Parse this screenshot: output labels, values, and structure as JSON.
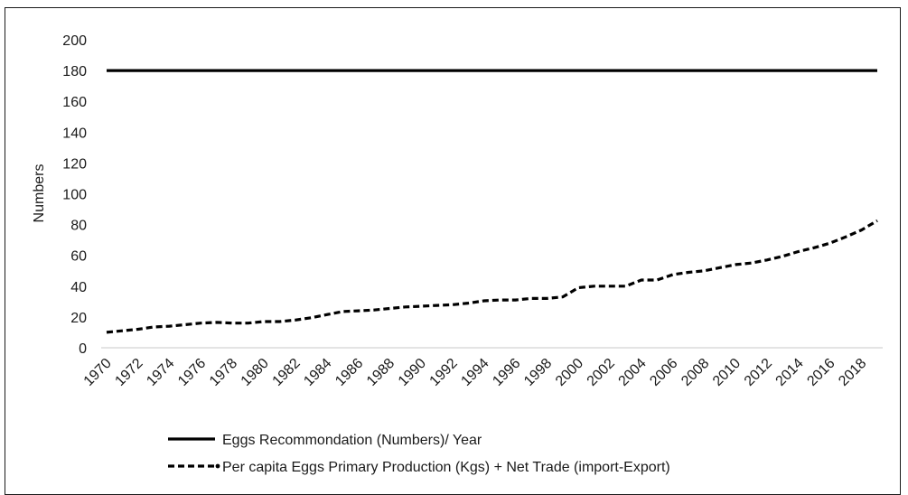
{
  "chart_data": {
    "type": "line",
    "title": "",
    "xlabel": "",
    "ylabel": "Numbers",
    "ylim": [
      0,
      200
    ],
    "yticks": [
      0,
      20,
      40,
      60,
      80,
      100,
      120,
      140,
      160,
      180,
      200
    ],
    "xticks": [
      1970,
      1972,
      1974,
      1976,
      1978,
      1980,
      1982,
      1984,
      1986,
      1988,
      1990,
      1992,
      1994,
      1996,
      1998,
      2000,
      2002,
      2004,
      2006,
      2008,
      2010,
      2012,
      2014,
      2016,
      2018
    ],
    "grid": false,
    "legend_position": "bottom",
    "x": [
      1970,
      1971,
      1972,
      1973,
      1974,
      1975,
      1976,
      1977,
      1978,
      1979,
      1980,
      1981,
      1982,
      1983,
      1984,
      1985,
      1986,
      1987,
      1988,
      1989,
      1990,
      1991,
      1992,
      1993,
      1994,
      1995,
      1996,
      1997,
      1998,
      1999,
      2000,
      2001,
      2002,
      2003,
      2004,
      2005,
      2006,
      2007,
      2008,
      2009,
      2010,
      2011,
      2012,
      2013,
      2014,
      2015,
      2016,
      2017,
      2018,
      2019
    ],
    "series": [
      {
        "name": "Eggs Recommondation (Numbers)/ Year",
        "style": "solid",
        "color": "#000000",
        "values": [
          180,
          180,
          180,
          180,
          180,
          180,
          180,
          180,
          180,
          180,
          180,
          180,
          180,
          180,
          180,
          180,
          180,
          180,
          180,
          180,
          180,
          180,
          180,
          180,
          180,
          180,
          180,
          180,
          180,
          180,
          180,
          180,
          180,
          180,
          180,
          180,
          180,
          180,
          180,
          180,
          180,
          180,
          180,
          180,
          180,
          180,
          180,
          180,
          180,
          180
        ]
      },
      {
        "name": "Per capita Eggs Primary Production  (Kgs) + Net Trade (import-Export)",
        "style": "dashed",
        "color": "#000000",
        "values": [
          10,
          11,
          12,
          13.5,
          14,
          15,
          16,
          16.5,
          16,
          16,
          17,
          17,
          18,
          19.5,
          21.5,
          23.5,
          24,
          24.5,
          25.5,
          26.5,
          27,
          27.5,
          28,
          29,
          30.5,
          31,
          31,
          32,
          32,
          33,
          39,
          40,
          40,
          40,
          44,
          44,
          47.5,
          49,
          50,
          52,
          54,
          55,
          57,
          59.5,
          62.5,
          65,
          68,
          72,
          76.5,
          82.5
        ]
      }
    ]
  }
}
